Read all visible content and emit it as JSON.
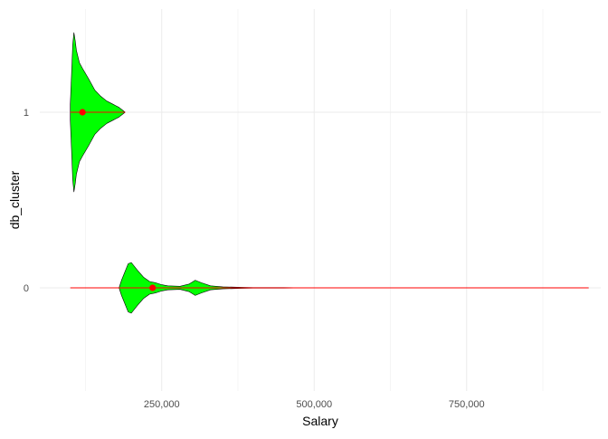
{
  "chart_data": {
    "type": "violin",
    "orientation": "horizontal",
    "xlabel": "Salary",
    "ylabel": "db_cluster",
    "x_tick_labels": [
      "250,000",
      "500,000",
      "750,000"
    ],
    "x_ticks": [
      250000,
      500000,
      750000
    ],
    "xlim": [
      50000,
      970000
    ],
    "categories": [
      "1",
      "0"
    ],
    "grid": true,
    "colors": {
      "violin_fill": "#00ff00",
      "violin_outline": "#000000",
      "stat_color": "#ff0000",
      "grid": "#ebebeb"
    },
    "series": [
      {
        "category": "1",
        "range": [
          100000,
          190000
        ],
        "mean": 120000,
        "profile": [
          [
            100000,
            0.1
          ],
          [
            102000,
            0.45
          ],
          [
            104000,
            0.85
          ],
          [
            106000,
            1.0
          ],
          [
            108000,
            0.9
          ],
          [
            110000,
            0.78
          ],
          [
            115000,
            0.62
          ],
          [
            120000,
            0.55
          ],
          [
            130000,
            0.42
          ],
          [
            140000,
            0.28
          ],
          [
            150000,
            0.2
          ],
          [
            160000,
            0.14
          ],
          [
            170000,
            0.1
          ],
          [
            180000,
            0.06
          ],
          [
            185000,
            0.03
          ],
          [
            190000,
            0.0
          ]
        ]
      },
      {
        "category": "0",
        "range": [
          100000,
          950000
        ],
        "mean": 235000,
        "profile": [
          [
            180000,
            0.0
          ],
          [
            184000,
            0.3
          ],
          [
            190000,
            0.65
          ],
          [
            195000,
            0.95
          ],
          [
            200000,
            1.0
          ],
          [
            210000,
            0.7
          ],
          [
            220000,
            0.42
          ],
          [
            230000,
            0.25
          ],
          [
            240000,
            0.2
          ],
          [
            250000,
            0.12
          ],
          [
            260000,
            0.08
          ],
          [
            280000,
            0.06
          ],
          [
            295000,
            0.15
          ],
          [
            305000,
            0.3
          ],
          [
            315000,
            0.2
          ],
          [
            330000,
            0.08
          ],
          [
            350000,
            0.04
          ],
          [
            380000,
            0.02
          ],
          [
            400000,
            0.01
          ],
          [
            450000,
            0.01
          ],
          [
            500000,
            0.0
          ],
          [
            600000,
            0.0
          ],
          [
            950000,
            0.0
          ]
        ]
      }
    ]
  }
}
